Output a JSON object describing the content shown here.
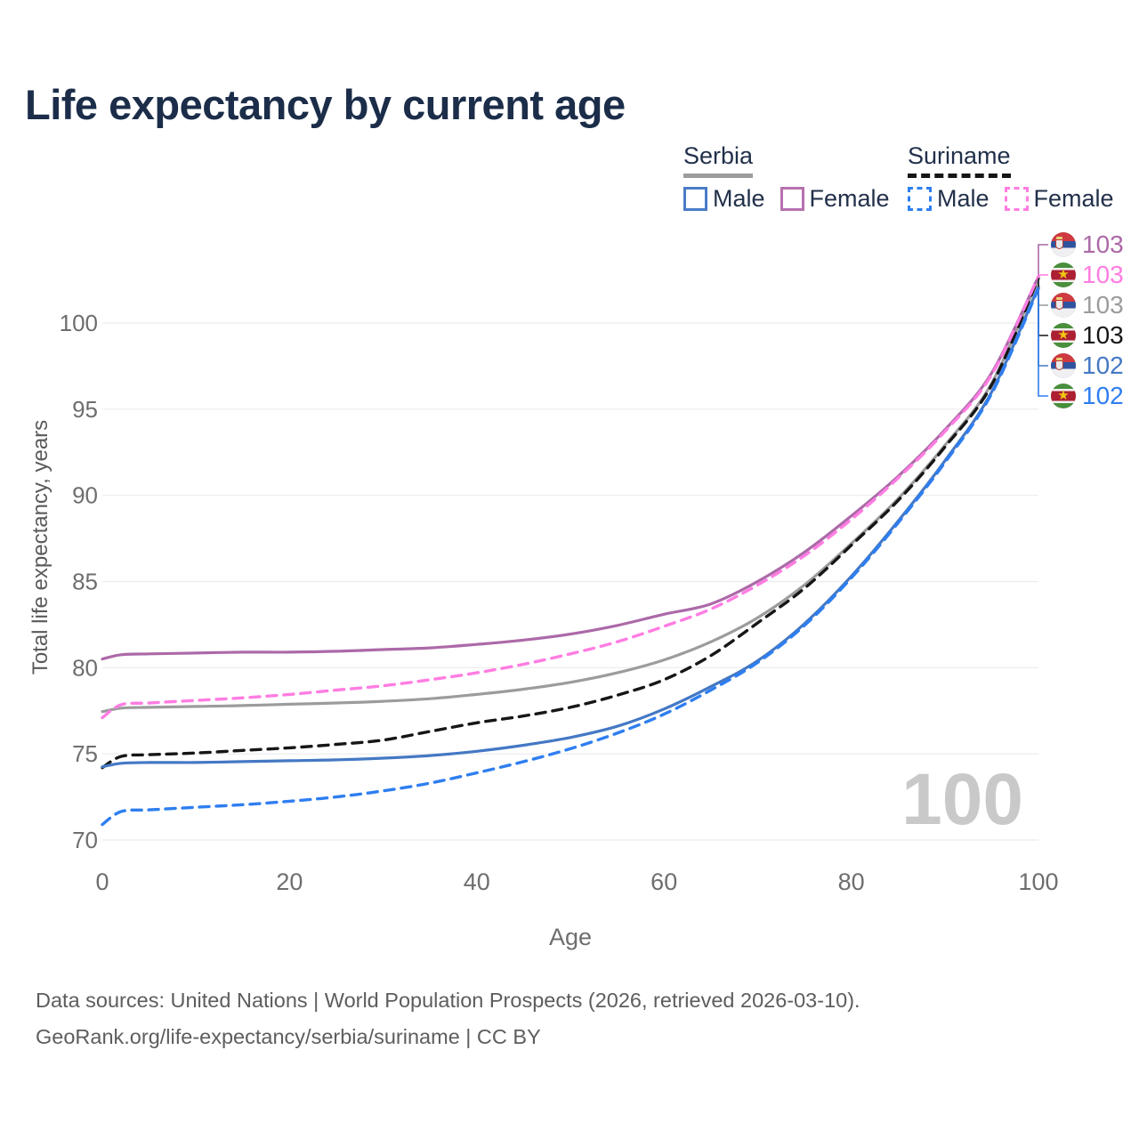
{
  "header": {
    "title": "Life expectancy by current age"
  },
  "legend": {
    "groups": [
      {
        "title": "Serbia",
        "line_style": "solid",
        "line_color": "#9c9c9c",
        "items": [
          {
            "label": "Male",
            "color": "#4a7cc7",
            "style": "solid"
          },
          {
            "label": "Female",
            "color": "#b671ae",
            "style": "solid"
          }
        ]
      },
      {
        "title": "Suriname",
        "line_style": "dashed",
        "line_color": "#161616",
        "items": [
          {
            "label": "Male",
            "color": "#2e7ef0",
            "style": "dashed"
          },
          {
            "label": "Female",
            "color": "#ff7de2",
            "style": "dashed"
          }
        ]
      }
    ]
  },
  "icons": {
    "suriname_star": "★"
  },
  "chart_data": {
    "type": "line",
    "title": "Life expectancy by current age",
    "xlabel": "Age",
    "ylabel": "Total life expectancy, years",
    "x_ticks": [
      0,
      20,
      40,
      60,
      80,
      100
    ],
    "y_ticks": [
      70,
      75,
      80,
      85,
      90,
      95,
      100
    ],
    "xlim": [
      0,
      100
    ],
    "ylim": [
      70,
      100
    ],
    "grid": "horizontal-only",
    "legend_position": "top-right",
    "age_indicator": "100",
    "ages": [
      0,
      2,
      5,
      10,
      15,
      20,
      25,
      30,
      35,
      40,
      45,
      50,
      55,
      60,
      65,
      70,
      75,
      80,
      85,
      90,
      95,
      100
    ],
    "series": [
      {
        "id": "serbia-female",
        "name": "Serbia Female",
        "country": "Serbia",
        "sex": "Female",
        "style": "solid",
        "color": "#ac69a8",
        "flag": "serbia",
        "end_label": "103",
        "values": [
          80.5,
          80.75,
          80.8,
          80.85,
          80.9,
          80.9,
          80.95,
          81.05,
          81.15,
          81.35,
          81.6,
          81.95,
          82.45,
          83.1,
          83.7,
          85.0,
          86.7,
          88.8,
          91.1,
          93.8,
          97.1,
          102.7
        ]
      },
      {
        "id": "suriname-female",
        "name": "Suriname Female",
        "country": "Suriname",
        "sex": "Female",
        "style": "dashed",
        "color": "#ff7de2",
        "flag": "suriname",
        "end_label": "103",
        "values": [
          77.1,
          77.85,
          77.95,
          78.1,
          78.25,
          78.45,
          78.7,
          78.95,
          79.3,
          79.7,
          80.2,
          80.8,
          81.5,
          82.4,
          83.4,
          84.8,
          86.5,
          88.6,
          91.0,
          93.7,
          97.0,
          102.7
        ]
      },
      {
        "id": "serbia-total",
        "name": "Serbia",
        "country": "Serbia",
        "sex": "Both",
        "style": "solid",
        "color": "#9c9c9c",
        "flag": "serbia",
        "end_label": "103",
        "values": [
          77.45,
          77.65,
          77.7,
          77.75,
          77.8,
          77.88,
          77.95,
          78.05,
          78.2,
          78.45,
          78.75,
          79.15,
          79.7,
          80.45,
          81.5,
          82.9,
          84.8,
          87.2,
          89.8,
          92.9,
          96.5,
          102.6
        ]
      },
      {
        "id": "suriname-total",
        "name": "Suriname",
        "country": "Suriname",
        "sex": "Both",
        "style": "dashed",
        "color": "#161616",
        "flag": "suriname",
        "end_label": "103",
        "values": [
          74.2,
          74.85,
          74.95,
          75.05,
          75.2,
          75.35,
          75.55,
          75.8,
          76.3,
          76.8,
          77.2,
          77.7,
          78.4,
          79.3,
          80.7,
          82.6,
          84.6,
          87.1,
          89.7,
          92.8,
          96.4,
          102.6
        ]
      },
      {
        "id": "serbia-male",
        "name": "Serbia Male",
        "country": "Serbia",
        "sex": "Male",
        "style": "solid",
        "color": "#4478c4",
        "flag": "serbia",
        "end_label": "102",
        "values": [
          74.25,
          74.45,
          74.5,
          74.5,
          74.55,
          74.6,
          74.65,
          74.75,
          74.9,
          75.15,
          75.5,
          75.95,
          76.6,
          77.6,
          78.9,
          80.4,
          82.55,
          85.3,
          88.5,
          92.0,
          96.0,
          102.1
        ]
      },
      {
        "id": "suriname-male",
        "name": "Suriname Male",
        "country": "Suriname",
        "sex": "Male",
        "style": "dashed",
        "color": "#2e7ef0",
        "flag": "suriname",
        "end_label": "102",
        "values": [
          70.9,
          71.65,
          71.75,
          71.9,
          72.05,
          72.25,
          72.5,
          72.85,
          73.3,
          73.9,
          74.55,
          75.3,
          76.2,
          77.3,
          78.7,
          80.3,
          82.45,
          85.2,
          88.4,
          91.9,
          95.9,
          102.0
        ]
      }
    ]
  },
  "footer": {
    "line1": "Data sources: United Nations | World Population Prospects (2026, retrieved 2026-03-10).",
    "line2": "GeoRank.org/life-expectancy/serbia/suriname | CC BY"
  }
}
